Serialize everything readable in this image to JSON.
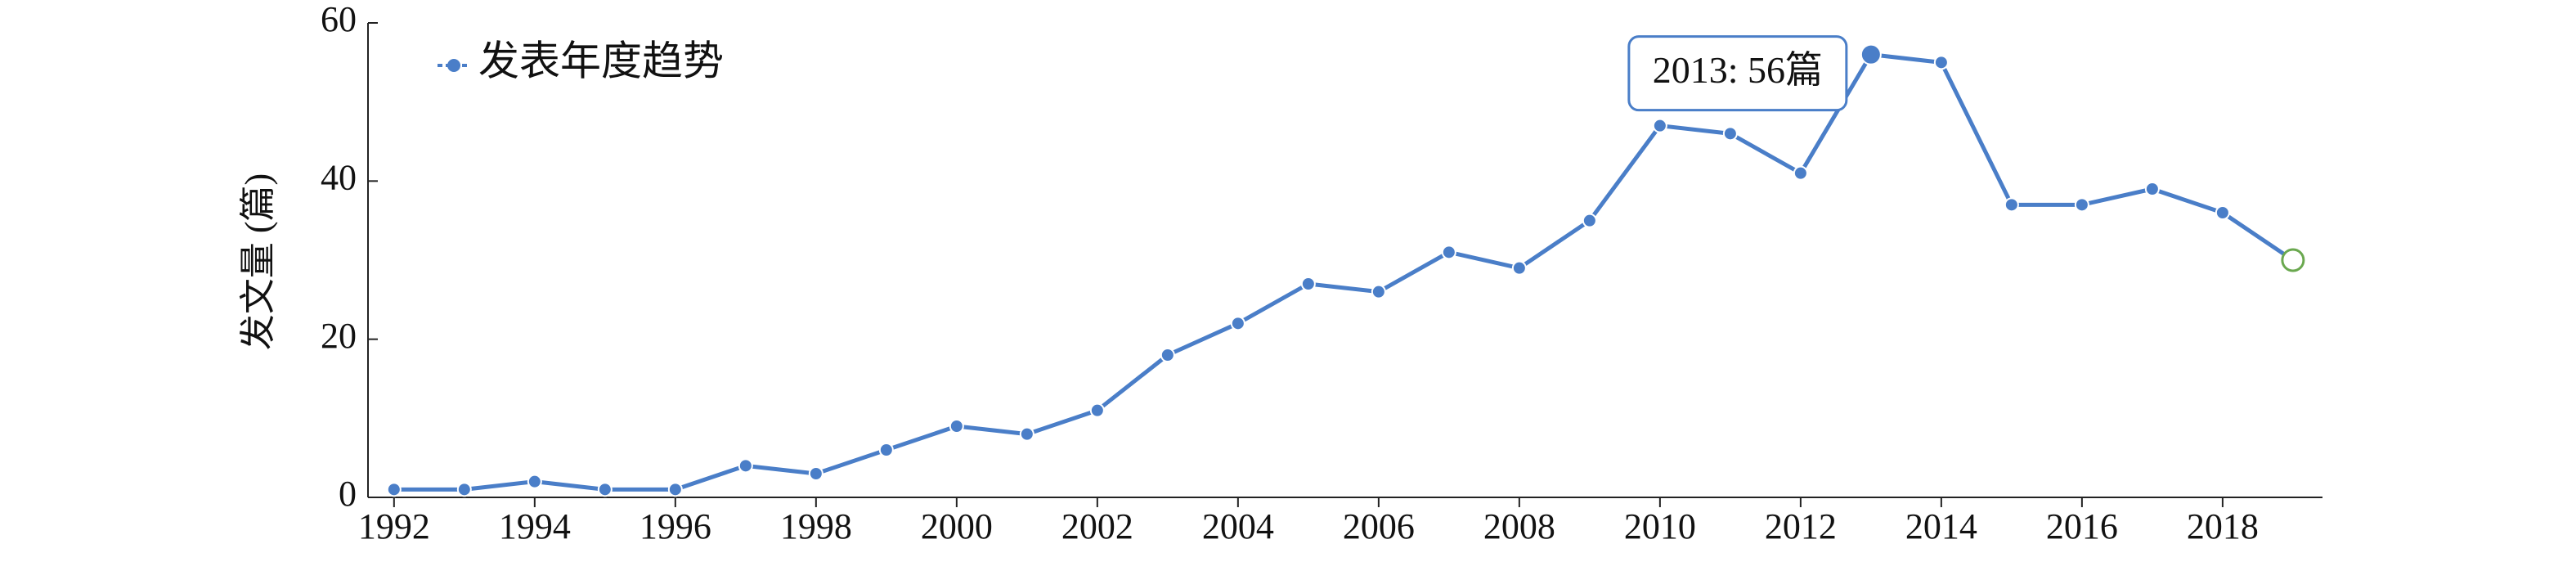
{
  "chart_data": {
    "type": "line",
    "x": [
      1992,
      1993,
      1994,
      1995,
      1996,
      1997,
      1998,
      1999,
      2000,
      2001,
      2002,
      2003,
      2004,
      2005,
      2006,
      2007,
      2008,
      2009,
      2010,
      2011,
      2012,
      2013,
      2014,
      2015,
      2016,
      2017,
      2018,
      2019
    ],
    "series": [
      {
        "name": "发表年度趋势",
        "color": "#4a7ec8",
        "values": [
          1,
          1,
          2,
          1,
          1,
          4,
          3,
          6,
          9,
          8,
          11,
          18,
          22,
          27,
          26,
          31,
          29,
          35,
          47,
          46,
          41,
          56,
          55,
          37,
          37,
          39,
          36,
          30
        ]
      }
    ],
    "y_label": "发文量 (篇)",
    "annotation": "2013: 56篇",
    "end_marker_color": "#6aa84f",
    "xlim": [
      1991.63,
      2019.42
    ],
    "xticks": [
      1992,
      1994,
      1996,
      1998,
      2000,
      2002,
      2004,
      2006,
      2008,
      2010,
      2012,
      2014,
      2016,
      2018
    ],
    "ylim": [
      0,
      60
    ],
    "yticks": [
      0,
      20,
      40,
      60
    ],
    "grid": false,
    "legend": "top-left"
  }
}
